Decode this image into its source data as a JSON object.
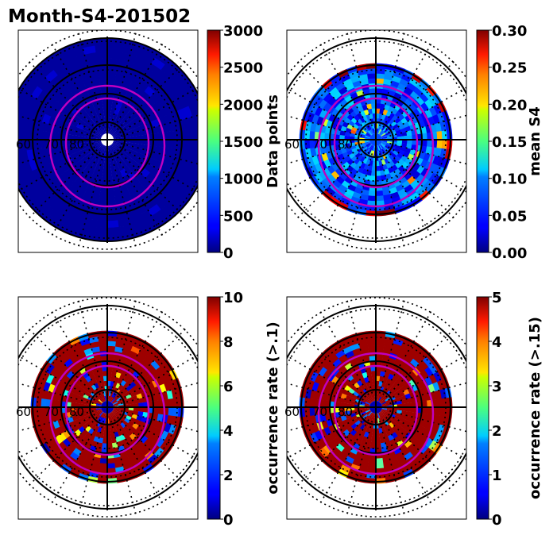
{
  "figure": {
    "title": "Month-S4-201502"
  },
  "chart_data": [
    {
      "type": "heatmap",
      "projection": "polar",
      "colormap": "jet",
      "colorbar": {
        "label": "Data points",
        "range": [
          0,
          3000
        ],
        "ticks": [
          "0",
          "500",
          "1000",
          "1500",
          "2000",
          "2500",
          "3000"
        ]
      },
      "latitude_labels": [
        "60",
        "70",
        "80"
      ],
      "dominant_level": 0.02
    },
    {
      "type": "heatmap",
      "projection": "polar",
      "colormap": "jet",
      "colorbar": {
        "label": "mean S4",
        "range": [
          0,
          0.3
        ],
        "ticks": [
          "0.00",
          "0.05",
          "0.10",
          "0.15",
          "0.20",
          "0.25",
          "0.30"
        ]
      },
      "latitude_labels": [
        "60",
        "70",
        "80"
      ],
      "dominant_level": 0.25
    },
    {
      "type": "heatmap",
      "projection": "polar",
      "colormap": "jet",
      "colorbar": {
        "label": "occurrence rate (>.1)",
        "range": [
          0,
          10
        ],
        "ticks": [
          "0",
          "2",
          "4",
          "6",
          "8",
          "10"
        ]
      },
      "latitude_labels": [
        "60",
        "70",
        "80"
      ],
      "dominant_level": 0.97
    },
    {
      "type": "heatmap",
      "projection": "polar",
      "colormap": "jet",
      "colorbar": {
        "label": "occurrence rate (>.15)",
        "range": [
          0,
          5
        ],
        "ticks": [
          "0",
          "1",
          "2",
          "3",
          "4",
          "5"
        ]
      },
      "latitude_labels": [
        "60",
        "70",
        "80"
      ],
      "dominant_level": 0.95
    }
  ],
  "colors": {
    "contour": "#c000c0",
    "grid": "#000000"
  }
}
